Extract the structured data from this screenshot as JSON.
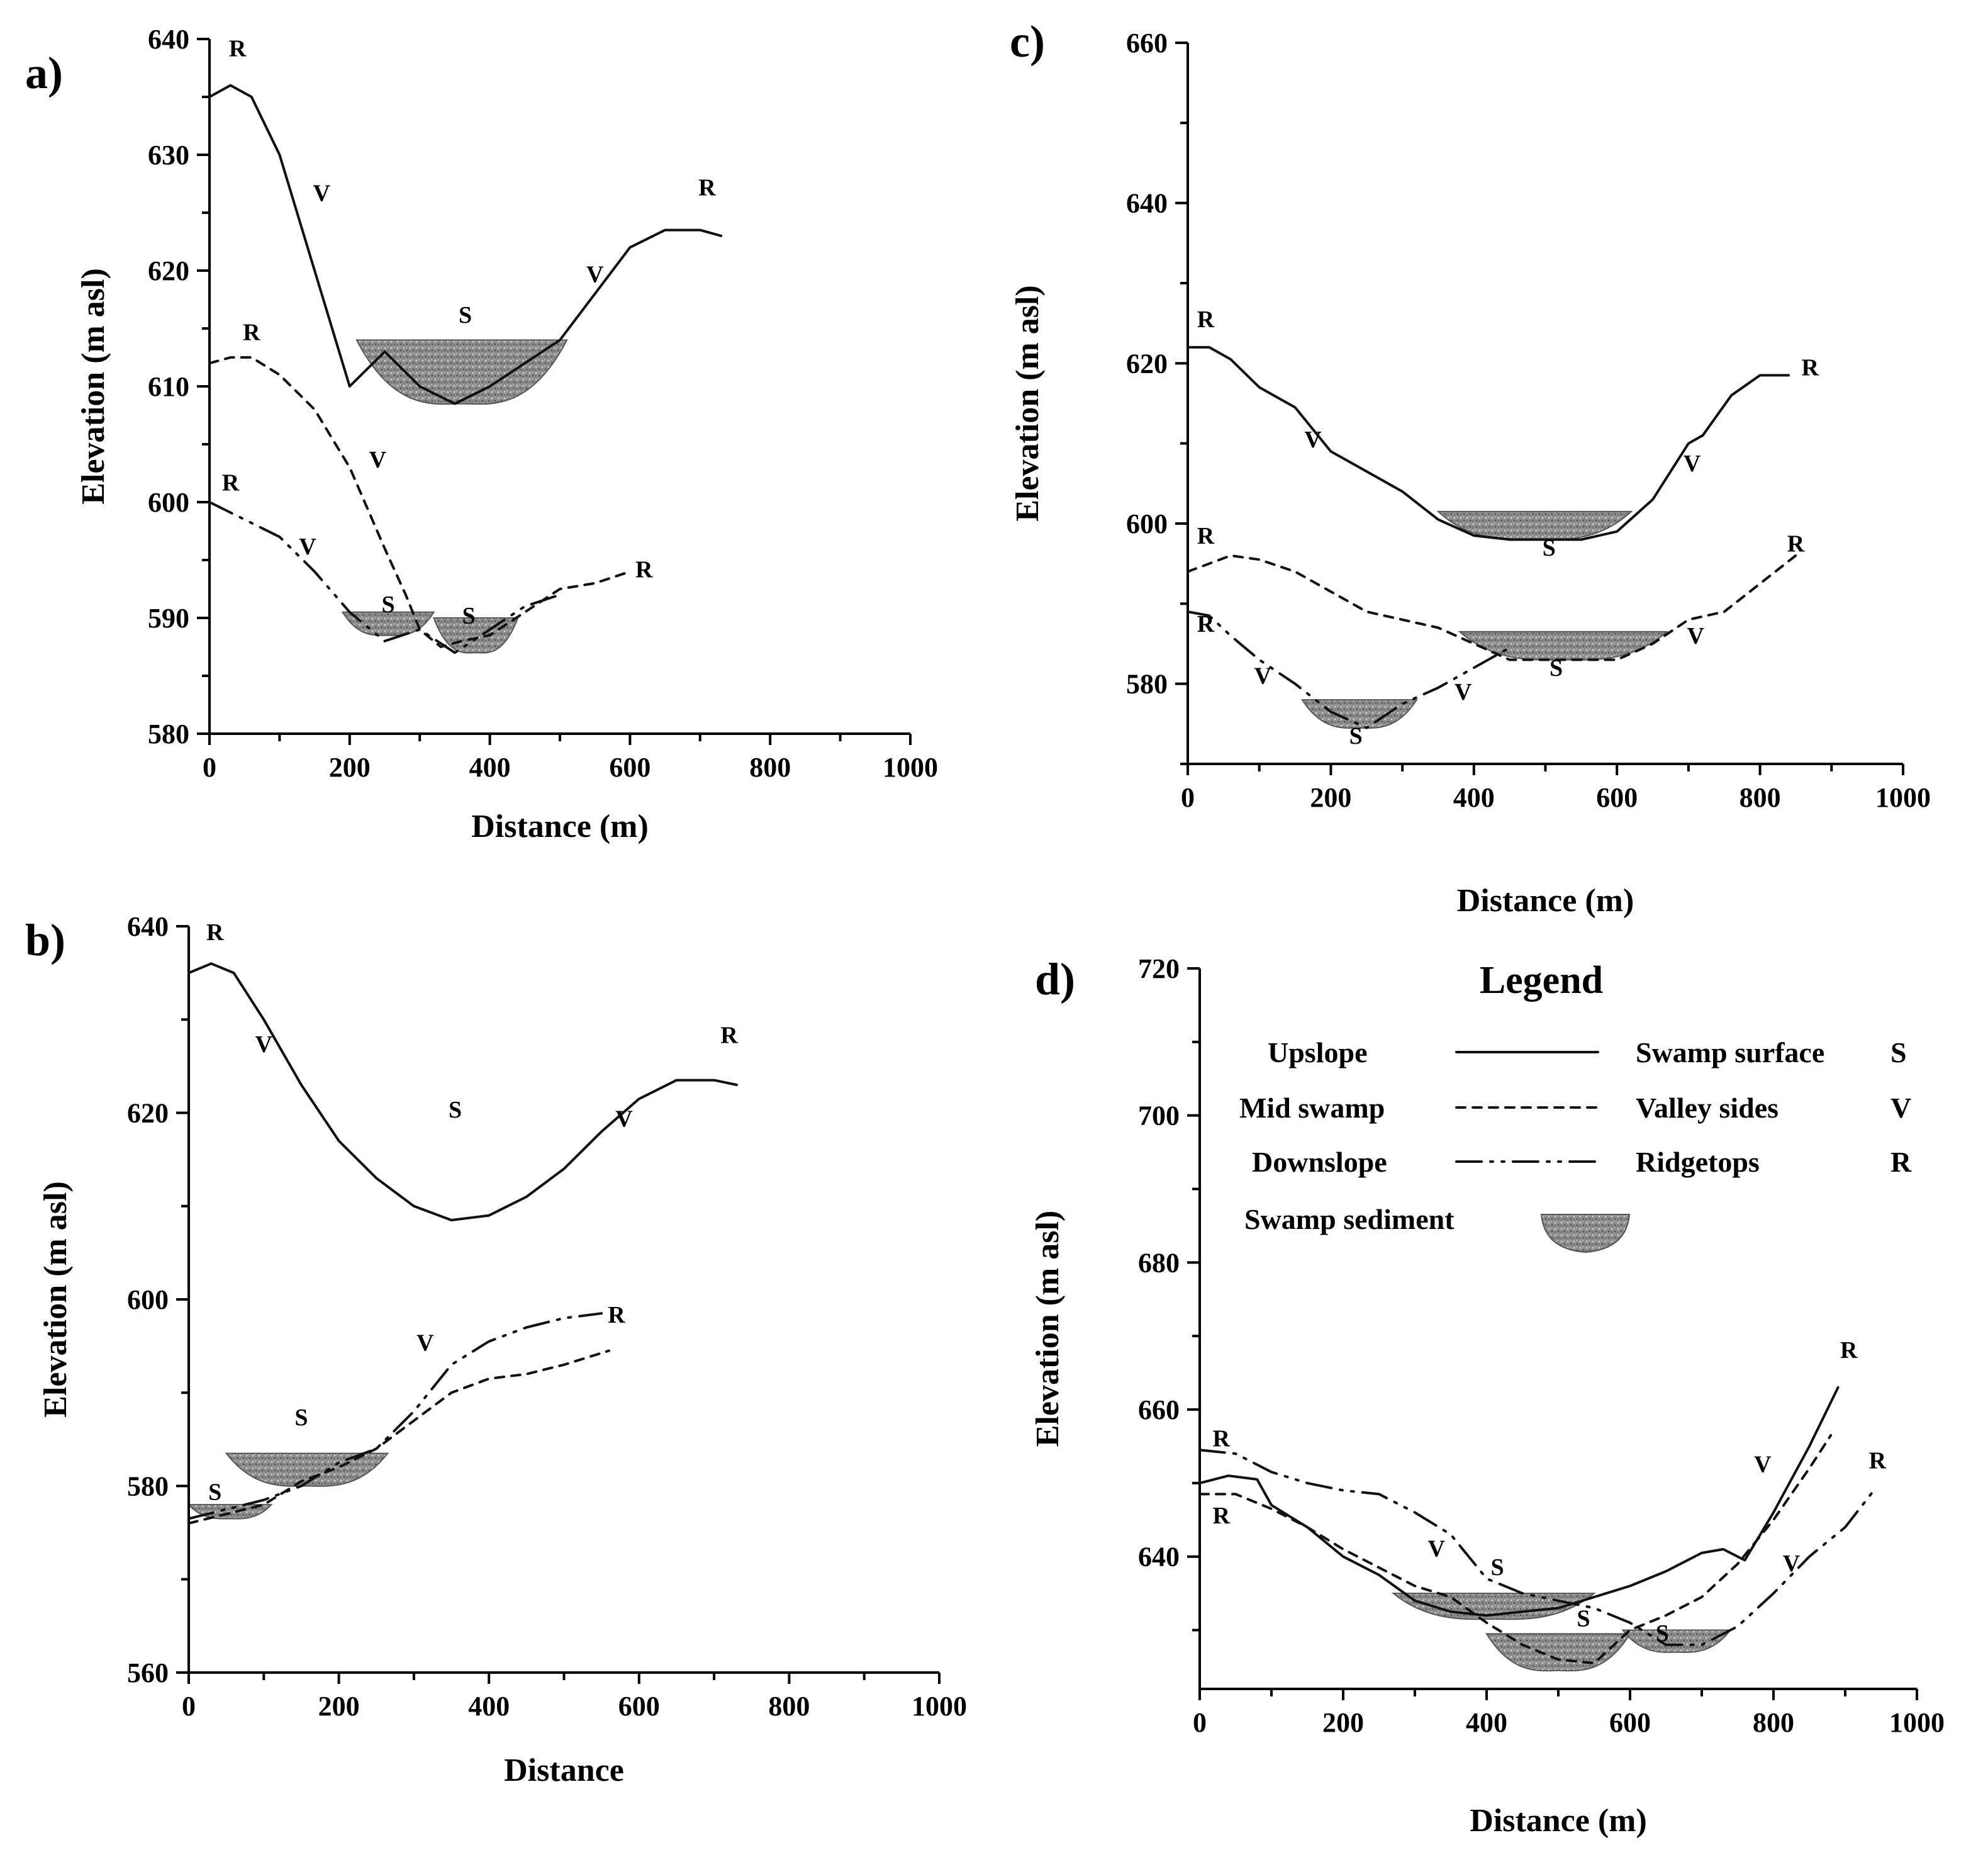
{
  "figure": {
    "legend": {
      "title": "Legend",
      "rows": [
        {
          "profile": "Upslope",
          "style": "solid",
          "label": "Swamp surface",
          "code": "S"
        },
        {
          "profile": "Mid swamp",
          "style": "dashed",
          "label": "Valley sides",
          "code": "V"
        },
        {
          "profile": "Downslope",
          "style": "dashdot",
          "label": "Ridgetops",
          "code": "R"
        }
      ],
      "sediment_label": "Swamp sediment"
    },
    "colors": {
      "line": "#111111",
      "sediment": "#8c8c8c",
      "sediment_edge": "#555555"
    }
  },
  "chart_data": [
    {
      "id": "a",
      "panel_label": "a)",
      "type": "line",
      "xlabel": "Distance (m)",
      "ylabel": "Elevation (m asl)",
      "xlim": [
        0,
        1000
      ],
      "ylim": [
        580,
        640
      ],
      "xticks": [
        0,
        200,
        400,
        600,
        800,
        1000
      ],
      "yticks": [
        580,
        590,
        600,
        610,
        620,
        630,
        640
      ],
      "series": [
        {
          "name": "Upslope",
          "style": "solid",
          "x": [
            0,
            30,
            60,
            100,
            150,
            200,
            250,
            300,
            350,
            400,
            450,
            500,
            550,
            600,
            650,
            700,
            730
          ],
          "y": [
            635,
            636,
            635,
            630,
            620,
            610,
            613,
            610,
            608.5,
            610,
            612,
            614,
            618,
            622,
            623.5,
            623.5,
            623
          ]
        },
        {
          "name": "Mid swamp",
          "style": "dashed",
          "x": [
            0,
            30,
            60,
            100,
            150,
            200,
            250,
            280,
            300,
            330,
            360,
            400,
            450,
            500,
            550,
            600
          ],
          "y": [
            612,
            612.5,
            612.5,
            611,
            608,
            603,
            596,
            592,
            589,
            587.5,
            588,
            588.5,
            590.5,
            592.5,
            593,
            594
          ]
        },
        {
          "name": "Downslope",
          "style": "dashdot",
          "x": [
            0,
            50,
            100,
            150,
            200,
            250,
            300,
            350,
            400,
            450,
            500
          ],
          "y": [
            600,
            598.5,
            597,
            594,
            590.5,
            588,
            589,
            587,
            589,
            591,
            592
          ]
        }
      ],
      "sediment": [
        {
          "x_start": 210,
          "x_end": 510,
          "surface": 614,
          "y": [
            608.5,
            610,
            612
          ]
        },
        {
          "x_start": 190,
          "x_end": 320,
          "surface": 590.5,
          "y": [
            588.5
          ]
        },
        {
          "x_start": 320,
          "x_end": 440,
          "surface": 590,
          "y": [
            587
          ]
        }
      ],
      "annotations": [
        {
          "text": "R",
          "x": 40,
          "y": 638.5
        },
        {
          "text": "V",
          "x": 160,
          "y": 626
        },
        {
          "text": "S",
          "x": 365,
          "y": 615.5
        },
        {
          "text": "V",
          "x": 550,
          "y": 619
        },
        {
          "text": "R",
          "x": 710,
          "y": 626.5
        },
        {
          "text": "R",
          "x": 60,
          "y": 614
        },
        {
          "text": "V",
          "x": 240,
          "y": 603
        },
        {
          "text": "R",
          "x": 30,
          "y": 601
        },
        {
          "text": "V",
          "x": 140,
          "y": 595.5
        },
        {
          "text": "S",
          "x": 255,
          "y": 590.5
        },
        {
          "text": "S",
          "x": 370,
          "y": 589.5
        },
        {
          "text": "R",
          "x": 620,
          "y": 593.5
        }
      ]
    },
    {
      "id": "b",
      "panel_label": "b)",
      "type": "line",
      "xlabel": "Distance",
      "ylabel": "Elevation (m asl)",
      "xlim": [
        0,
        1000
      ],
      "ylim": [
        560,
        640
      ],
      "xticks": [
        0,
        200,
        400,
        600,
        800,
        1000
      ],
      "yticks": [
        560,
        580,
        600,
        620,
        640
      ],
      "series": [
        {
          "name": "Upslope",
          "style": "solid",
          "x": [
            0,
            30,
            60,
            100,
            150,
            200,
            250,
            300,
            350,
            400,
            450,
            500,
            550,
            600,
            650,
            700,
            730
          ],
          "y": [
            635,
            636,
            635,
            630,
            623,
            617,
            613,
            610,
            608.5,
            609,
            611,
            614,
            618,
            621.5,
            623.5,
            623.5,
            623
          ]
        },
        {
          "name": "Mid swamp",
          "style": "dashed",
          "x": [
            0,
            50,
            100,
            150,
            200,
            250,
            300,
            350,
            400,
            450,
            500,
            560
          ],
          "y": [
            576,
            577,
            578,
            580.5,
            582,
            584,
            587,
            590,
            591.5,
            592,
            593,
            594.5
          ]
        },
        {
          "name": "Downslope",
          "style": "dashdot",
          "x": [
            0,
            50,
            100,
            150,
            200,
            250,
            300,
            350,
            400,
            450,
            500,
            550
          ],
          "y": [
            576.5,
            577.5,
            578.5,
            580,
            582.5,
            584,
            588,
            593,
            595.5,
            597,
            598,
            598.5
          ]
        }
      ],
      "sediment": [
        {
          "x_start": 50,
          "x_end": 265,
          "surface": 583.5,
          "y": [
            580
          ]
        },
        {
          "x_start": 0,
          "x_end": 110,
          "surface": 578,
          "y": [
            576.5
          ]
        }
      ],
      "annotations": [
        {
          "text": "R",
          "x": 35,
          "y": 638.5
        },
        {
          "text": "V",
          "x": 100,
          "y": 626.5
        },
        {
          "text": "S",
          "x": 355,
          "y": 619.5
        },
        {
          "text": "V",
          "x": 580,
          "y": 618.5
        },
        {
          "text": "R",
          "x": 720,
          "y": 627.5
        },
        {
          "text": "R",
          "x": 570,
          "y": 597.5
        },
        {
          "text": "V",
          "x": 315,
          "y": 594.5
        },
        {
          "text": "S",
          "x": 150,
          "y": 586.5
        },
        {
          "text": "S",
          "x": 35,
          "y": 578.5
        }
      ]
    },
    {
      "id": "c",
      "panel_label": "c)",
      "type": "line",
      "xlabel": "Distance (m)",
      "ylabel": "Elevation (m asl)",
      "xlim": [
        0,
        1000
      ],
      "ylim": [
        570,
        660
      ],
      "xticks": [
        0,
        200,
        400,
        600,
        800,
        1000
      ],
      "yticks": [
        580,
        600,
        620,
        640,
        660
      ],
      "series": [
        {
          "name": "Upslope",
          "style": "solid",
          "x": [
            0,
            30,
            60,
            100,
            150,
            200,
            250,
            300,
            350,
            400,
            450,
            500,
            550,
            600,
            650,
            700,
            720,
            760,
            800,
            840
          ],
          "y": [
            622,
            622,
            620.5,
            617,
            614.5,
            609,
            606.5,
            604,
            600.5,
            598.5,
            598,
            598,
            598,
            599,
            603,
            610,
            611,
            616,
            618.5,
            618.5
          ]
        },
        {
          "name": "Mid swamp",
          "style": "dashed",
          "x": [
            0,
            30,
            60,
            100,
            150,
            200,
            250,
            300,
            350,
            400,
            450,
            500,
            550,
            600,
            650,
            700,
            750,
            800,
            850
          ],
          "y": [
            594,
            595,
            596,
            595.5,
            594,
            591.5,
            589,
            588,
            587,
            585,
            583,
            583,
            583,
            583,
            585,
            588,
            589,
            592.5,
            596
          ]
        },
        {
          "name": "Downslope",
          "style": "dashdot",
          "x": [
            0,
            30,
            60,
            100,
            150,
            200,
            250,
            300,
            350,
            400,
            450
          ],
          "y": [
            589,
            588.5,
            586,
            583,
            580,
            576.5,
            574.5,
            577.5,
            579.5,
            582,
            584.5
          ]
        }
      ],
      "sediment": [
        {
          "x_start": 350,
          "x_end": 620,
          "surface": 601.5,
          "y": [
            598
          ]
        },
        {
          "x_start": 380,
          "x_end": 670,
          "surface": 586.5,
          "y": [
            583
          ]
        },
        {
          "x_start": 160,
          "x_end": 320,
          "surface": 578,
          "y": [
            574.5
          ]
        }
      ],
      "annotations": [
        {
          "text": "R",
          "x": 25,
          "y": 624.5
        },
        {
          "text": "V",
          "x": 175,
          "y": 609.5
        },
        {
          "text": "S",
          "x": 505,
          "y": 596
        },
        {
          "text": "V",
          "x": 705,
          "y": 606.5
        },
        {
          "text": "R",
          "x": 870,
          "y": 618.5
        },
        {
          "text": "R",
          "x": 25,
          "y": 597.5
        },
        {
          "text": "S",
          "x": 515,
          "y": 581
        },
        {
          "text": "V",
          "x": 710,
          "y": 585
        },
        {
          "text": "R",
          "x": 850,
          "y": 596.5
        },
        {
          "text": "R",
          "x": 25,
          "y": 586.5
        },
        {
          "text": "V",
          "x": 105,
          "y": 580
        },
        {
          "text": "S",
          "x": 235,
          "y": 572.5
        },
        {
          "text": "V",
          "x": 385,
          "y": 578
        }
      ]
    },
    {
      "id": "d",
      "panel_label": "d)",
      "type": "line",
      "xlabel": "Distance (m)",
      "ylabel": "Elevation (m asl)",
      "xlim": [
        0,
        1000
      ],
      "ylim": [
        622,
        720
      ],
      "xticks": [
        0,
        200,
        400,
        600,
        800,
        1000
      ],
      "yticks": [
        640,
        660,
        680,
        700,
        720
      ],
      "series": [
        {
          "name": "Upslope",
          "style": "solid",
          "x": [
            0,
            40,
            80,
            100,
            150,
            200,
            250,
            300,
            350,
            400,
            450,
            500,
            550,
            600,
            650,
            700,
            730,
            760,
            800,
            850,
            890
          ],
          "y": [
            650,
            651,
            650.5,
            647,
            644,
            640,
            637.5,
            634,
            632.5,
            632,
            632.5,
            633,
            634.5,
            636,
            638,
            640.5,
            641,
            639.5,
            646,
            655,
            663
          ]
        },
        {
          "name": "Mid swamp",
          "style": "dashed",
          "x": [
            0,
            50,
            100,
            150,
            200,
            250,
            300,
            350,
            400,
            450,
            500,
            550,
            600,
            650,
            700,
            750,
            800,
            850,
            880
          ],
          "y": [
            648.5,
            648.5,
            646.5,
            644,
            641,
            638.5,
            636,
            634.5,
            631,
            628,
            626,
            625.5,
            630,
            632,
            634.5,
            639,
            645,
            652,
            656.5
          ]
        },
        {
          "name": "Downslope",
          "style": "dashdot",
          "x": [
            0,
            50,
            100,
            150,
            200,
            250,
            300,
            350,
            400,
            450,
            500,
            550,
            600,
            650,
            700,
            750,
            800,
            850,
            900,
            940
          ],
          "y": [
            654.5,
            654,
            651.5,
            650,
            649,
            648.5,
            646,
            643,
            637,
            635,
            634,
            633,
            631,
            628,
            628,
            630.5,
            635,
            640,
            644,
            649
          ]
        }
      ],
      "sediment": [
        {
          "x_start": 270,
          "x_end": 550,
          "surface": 635,
          "y": [
            631.5
          ]
        },
        {
          "x_start": 400,
          "x_end": 600,
          "surface": 629.5,
          "y": [
            624.5
          ]
        },
        {
          "x_start": 590,
          "x_end": 740,
          "surface": 630,
          "y": [
            627
          ]
        }
      ],
      "annotations": [
        {
          "text": "R",
          "x": 30,
          "y": 655
        },
        {
          "text": "R",
          "x": 30,
          "y": 644.5
        },
        {
          "text": "V",
          "x": 330,
          "y": 640
        },
        {
          "text": "S",
          "x": 415,
          "y": 637.5
        },
        {
          "text": "S",
          "x": 535,
          "y": 630.5
        },
        {
          "text": "S",
          "x": 645,
          "y": 628.5
        },
        {
          "text": "V",
          "x": 785,
          "y": 651.5
        },
        {
          "text": "V",
          "x": 825,
          "y": 638
        },
        {
          "text": "R",
          "x": 905,
          "y": 667
        },
        {
          "text": "R",
          "x": 945,
          "y": 652
        }
      ]
    }
  ]
}
